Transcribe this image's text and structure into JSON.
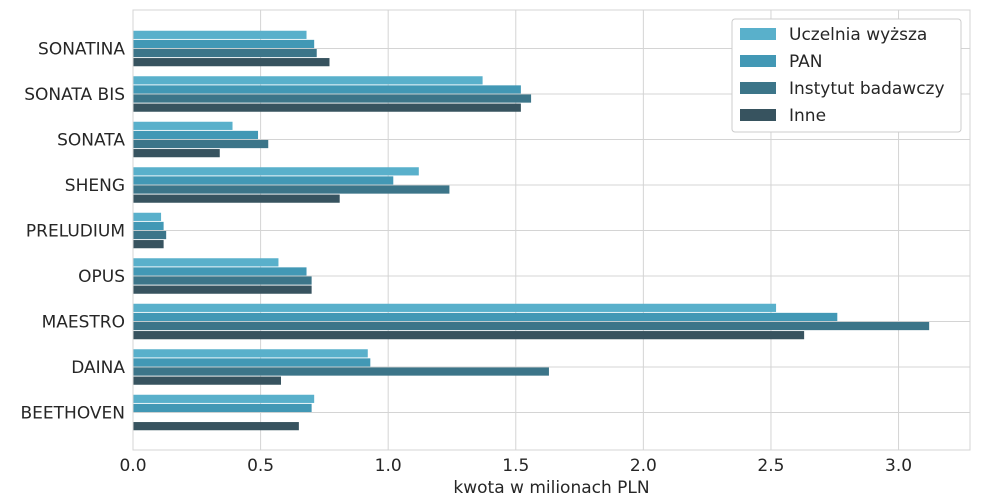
{
  "chart_data": {
    "type": "bar",
    "orientation": "horizontal",
    "categories": [
      "SONATINA",
      "SONATA BIS",
      "SONATA",
      "SHENG",
      "PRELUDIUM",
      "OPUS",
      "MAESTRO",
      "DAINA",
      "BEETHOVEN"
    ],
    "series": [
      {
        "name": "Uczelnia wyższa",
        "color": "#59b0cb",
        "values": [
          0.68,
          1.37,
          0.39,
          1.12,
          0.11,
          0.57,
          2.52,
          0.92,
          0.71
        ]
      },
      {
        "name": "PAN",
        "color": "#4298b5",
        "values": [
          0.71,
          1.52,
          0.49,
          1.02,
          0.12,
          0.68,
          2.76,
          0.93,
          0.7
        ]
      },
      {
        "name": "Instytut badawczy",
        "color": "#3c7589",
        "values": [
          0.72,
          1.56,
          0.53,
          1.24,
          0.13,
          0.7,
          3.12,
          1.63,
          null
        ]
      },
      {
        "name": "Inne",
        "color": "#37535f",
        "values": [
          0.77,
          1.52,
          0.34,
          0.81,
          0.12,
          0.7,
          2.63,
          0.58,
          0.65
        ]
      }
    ],
    "xlabel": "kwota w milionach PLN",
    "ylabel": "",
    "title": "",
    "xlim": [
      0,
      3.28
    ],
    "xticks": [
      "0.0",
      "0.5",
      "1.0",
      "1.5",
      "2.0",
      "2.5",
      "3.0"
    ],
    "grid": true,
    "legend_position": "top-right"
  }
}
